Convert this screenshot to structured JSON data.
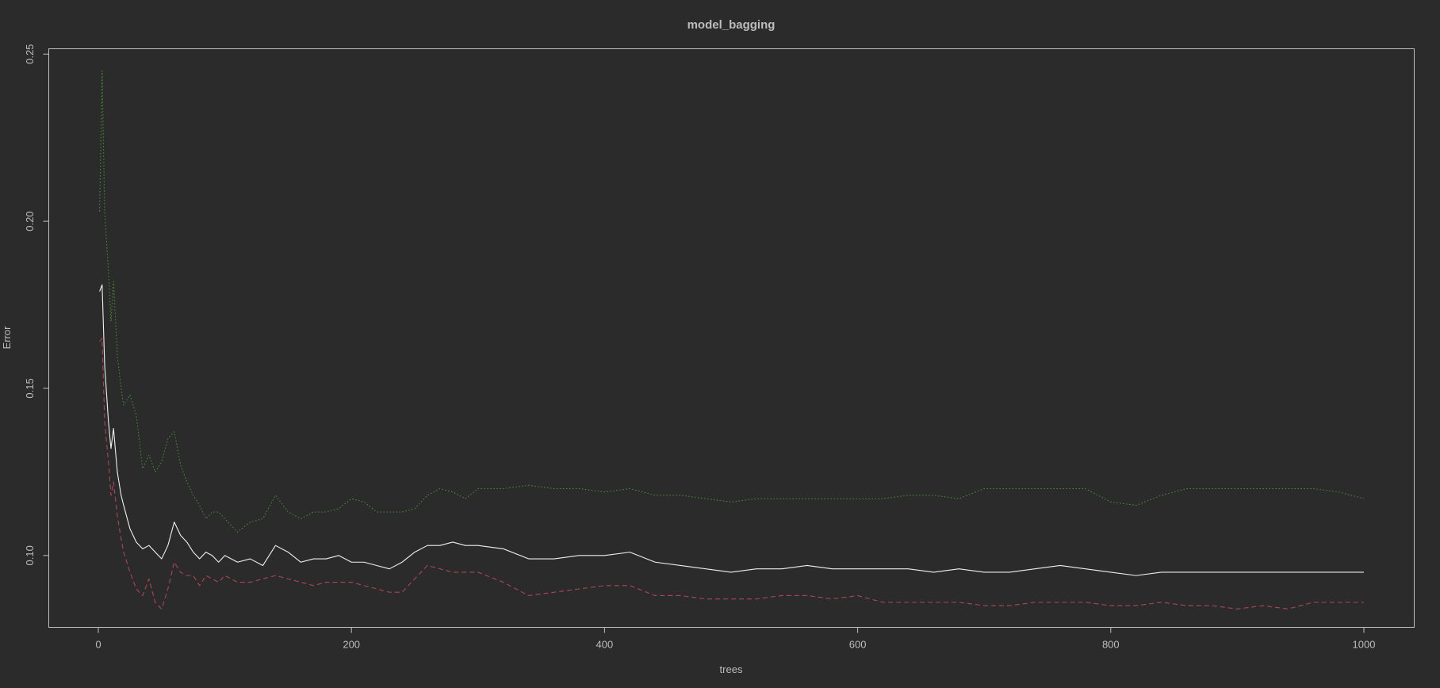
{
  "chart_data": {
    "type": "line",
    "title": "model_bagging",
    "xlabel": "trees",
    "ylabel": "Error",
    "xlim": [
      0,
      1000
    ],
    "ylim": [
      0.0785,
      0.2516
    ],
    "xticks": [
      0,
      200,
      400,
      600,
      800,
      1000
    ],
    "yticks": [
      0.1,
      0.15,
      0.2,
      0.25
    ],
    "xtick_labels": [
      "0",
      "200",
      "400",
      "600",
      "800",
      "1000"
    ],
    "ytick_labels": [
      "0.10",
      "0.15",
      "0.20",
      "0.25"
    ],
    "grid": false,
    "legend": "none",
    "series": [
      {
        "color": "#f0f0f0",
        "linestyle": "solid",
        "x": [
          1,
          3,
          5,
          8,
          10,
          12,
          15,
          18,
          20,
          25,
          30,
          35,
          40,
          45,
          50,
          55,
          60,
          65,
          70,
          75,
          80,
          85,
          90,
          95,
          100,
          110,
          120,
          130,
          140,
          150,
          160,
          170,
          180,
          190,
          200,
          210,
          220,
          230,
          240,
          250,
          260,
          270,
          280,
          290,
          300,
          320,
          340,
          360,
          380,
          400,
          420,
          440,
          460,
          480,
          500,
          520,
          540,
          560,
          580,
          600,
          620,
          640,
          660,
          680,
          700,
          720,
          740,
          760,
          780,
          800,
          820,
          840,
          860,
          880,
          900,
          920,
          940,
          960,
          980,
          1000
        ],
        "y": [
          0.179,
          0.181,
          0.157,
          0.14,
          0.132,
          0.138,
          0.125,
          0.118,
          0.115,
          0.108,
          0.104,
          0.102,
          0.103,
          0.101,
          0.099,
          0.103,
          0.11,
          0.106,
          0.104,
          0.101,
          0.099,
          0.101,
          0.1,
          0.098,
          0.1,
          0.098,
          0.099,
          0.097,
          0.103,
          0.101,
          0.098,
          0.099,
          0.099,
          0.1,
          0.098,
          0.098,
          0.097,
          0.096,
          0.098,
          0.101,
          0.103,
          0.103,
          0.104,
          0.103,
          0.103,
          0.102,
          0.099,
          0.099,
          0.1,
          0.1,
          0.101,
          0.098,
          0.097,
          0.096,
          0.095,
          0.096,
          0.096,
          0.097,
          0.096,
          0.096,
          0.096,
          0.096,
          0.095,
          0.096,
          0.095,
          0.095,
          0.096,
          0.097,
          0.096,
          0.095,
          0.094,
          0.095,
          0.095,
          0.095,
          0.095,
          0.095,
          0.095,
          0.095,
          0.095,
          0.095
        ]
      },
      {
        "color": "#b0445a",
        "linestyle": "dashed",
        "x": [
          1,
          3,
          5,
          8,
          10,
          12,
          15,
          18,
          20,
          25,
          30,
          35,
          40,
          45,
          50,
          55,
          60,
          65,
          70,
          75,
          80,
          85,
          90,
          95,
          100,
          110,
          120,
          130,
          140,
          150,
          160,
          170,
          180,
          190,
          200,
          210,
          220,
          230,
          240,
          250,
          260,
          270,
          280,
          290,
          300,
          320,
          340,
          360,
          380,
          400,
          420,
          440,
          460,
          480,
          500,
          520,
          540,
          560,
          580,
          600,
          620,
          640,
          660,
          680,
          700,
          720,
          740,
          760,
          780,
          800,
          820,
          840,
          860,
          880,
          900,
          920,
          940,
          960,
          980,
          1000
        ],
        "y": [
          0.164,
          0.165,
          0.14,
          0.128,
          0.118,
          0.122,
          0.112,
          0.105,
          0.101,
          0.095,
          0.09,
          0.088,
          0.093,
          0.086,
          0.084,
          0.09,
          0.098,
          0.095,
          0.094,
          0.094,
          0.091,
          0.094,
          0.093,
          0.092,
          0.094,
          0.092,
          0.092,
          0.093,
          0.094,
          0.093,
          0.092,
          0.091,
          0.092,
          0.092,
          0.092,
          0.091,
          0.09,
          0.089,
          0.089,
          0.093,
          0.097,
          0.096,
          0.095,
          0.095,
          0.095,
          0.092,
          0.088,
          0.089,
          0.09,
          0.091,
          0.091,
          0.088,
          0.088,
          0.087,
          0.087,
          0.087,
          0.088,
          0.088,
          0.087,
          0.088,
          0.086,
          0.086,
          0.086,
          0.086,
          0.085,
          0.085,
          0.086,
          0.086,
          0.086,
          0.085,
          0.085,
          0.086,
          0.085,
          0.085,
          0.084,
          0.085,
          0.084,
          0.086,
          0.086,
          0.086
        ]
      },
      {
        "color": "#4a8a3c",
        "linestyle": "dotted",
        "x": [
          1,
          3,
          5,
          8,
          10,
          12,
          15,
          18,
          20,
          25,
          30,
          35,
          40,
          45,
          50,
          55,
          60,
          65,
          70,
          75,
          80,
          85,
          90,
          95,
          100,
          110,
          120,
          130,
          140,
          150,
          160,
          170,
          180,
          190,
          200,
          210,
          220,
          230,
          240,
          250,
          260,
          270,
          280,
          290,
          300,
          320,
          340,
          360,
          380,
          400,
          420,
          440,
          460,
          480,
          500,
          520,
          540,
          560,
          580,
          600,
          620,
          640,
          660,
          680,
          700,
          720,
          740,
          760,
          780,
          800,
          820,
          840,
          860,
          880,
          900,
          920,
          940,
          960,
          980,
          1000
        ],
        "y": [
          0.203,
          0.245,
          0.203,
          0.185,
          0.17,
          0.182,
          0.16,
          0.15,
          0.145,
          0.148,
          0.142,
          0.126,
          0.13,
          0.125,
          0.128,
          0.135,
          0.137,
          0.127,
          0.122,
          0.118,
          0.115,
          0.111,
          0.113,
          0.113,
          0.111,
          0.107,
          0.11,
          0.111,
          0.118,
          0.113,
          0.111,
          0.113,
          0.113,
          0.114,
          0.117,
          0.116,
          0.113,
          0.113,
          0.113,
          0.114,
          0.118,
          0.12,
          0.119,
          0.117,
          0.12,
          0.12,
          0.121,
          0.12,
          0.12,
          0.119,
          0.12,
          0.118,
          0.118,
          0.117,
          0.116,
          0.117,
          0.117,
          0.117,
          0.117,
          0.117,
          0.117,
          0.118,
          0.118,
          0.117,
          0.12,
          0.12,
          0.12,
          0.12,
          0.12,
          0.116,
          0.115,
          0.118,
          0.12,
          0.12,
          0.12,
          0.12,
          0.12,
          0.12,
          0.119,
          0.117
        ]
      }
    ]
  }
}
